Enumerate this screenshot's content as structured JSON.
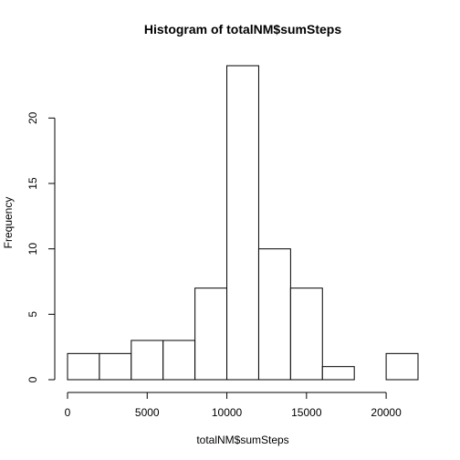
{
  "chart_data": {
    "type": "bar",
    "title": "Histogram of totalNM$sumSteps",
    "xlabel": "totalNM$sumSteps",
    "ylabel": "Frequency",
    "bins": [
      {
        "from": 0,
        "to": 2000,
        "count": 2
      },
      {
        "from": 2000,
        "to": 4000,
        "count": 2
      },
      {
        "from": 4000,
        "to": 6000,
        "count": 3
      },
      {
        "from": 6000,
        "to": 8000,
        "count": 3
      },
      {
        "from": 8000,
        "to": 10000,
        "count": 7
      },
      {
        "from": 10000,
        "to": 12000,
        "count": 24
      },
      {
        "from": 12000,
        "to": 14000,
        "count": 10
      },
      {
        "from": 14000,
        "to": 16000,
        "count": 7
      },
      {
        "from": 16000,
        "to": 18000,
        "count": 1
      },
      {
        "from": 18000,
        "to": 20000,
        "count": 0
      },
      {
        "from": 20000,
        "to": 22000,
        "count": 2
      }
    ],
    "xticks": [
      0,
      5000,
      10000,
      15000,
      20000
    ],
    "yticks": [
      0,
      5,
      10,
      15,
      20
    ],
    "xlim": [
      0,
      22000
    ],
    "ylim": [
      0,
      24
    ],
    "grid": false,
    "bar_fill": "#ffffff",
    "bar_stroke": "#000000"
  }
}
